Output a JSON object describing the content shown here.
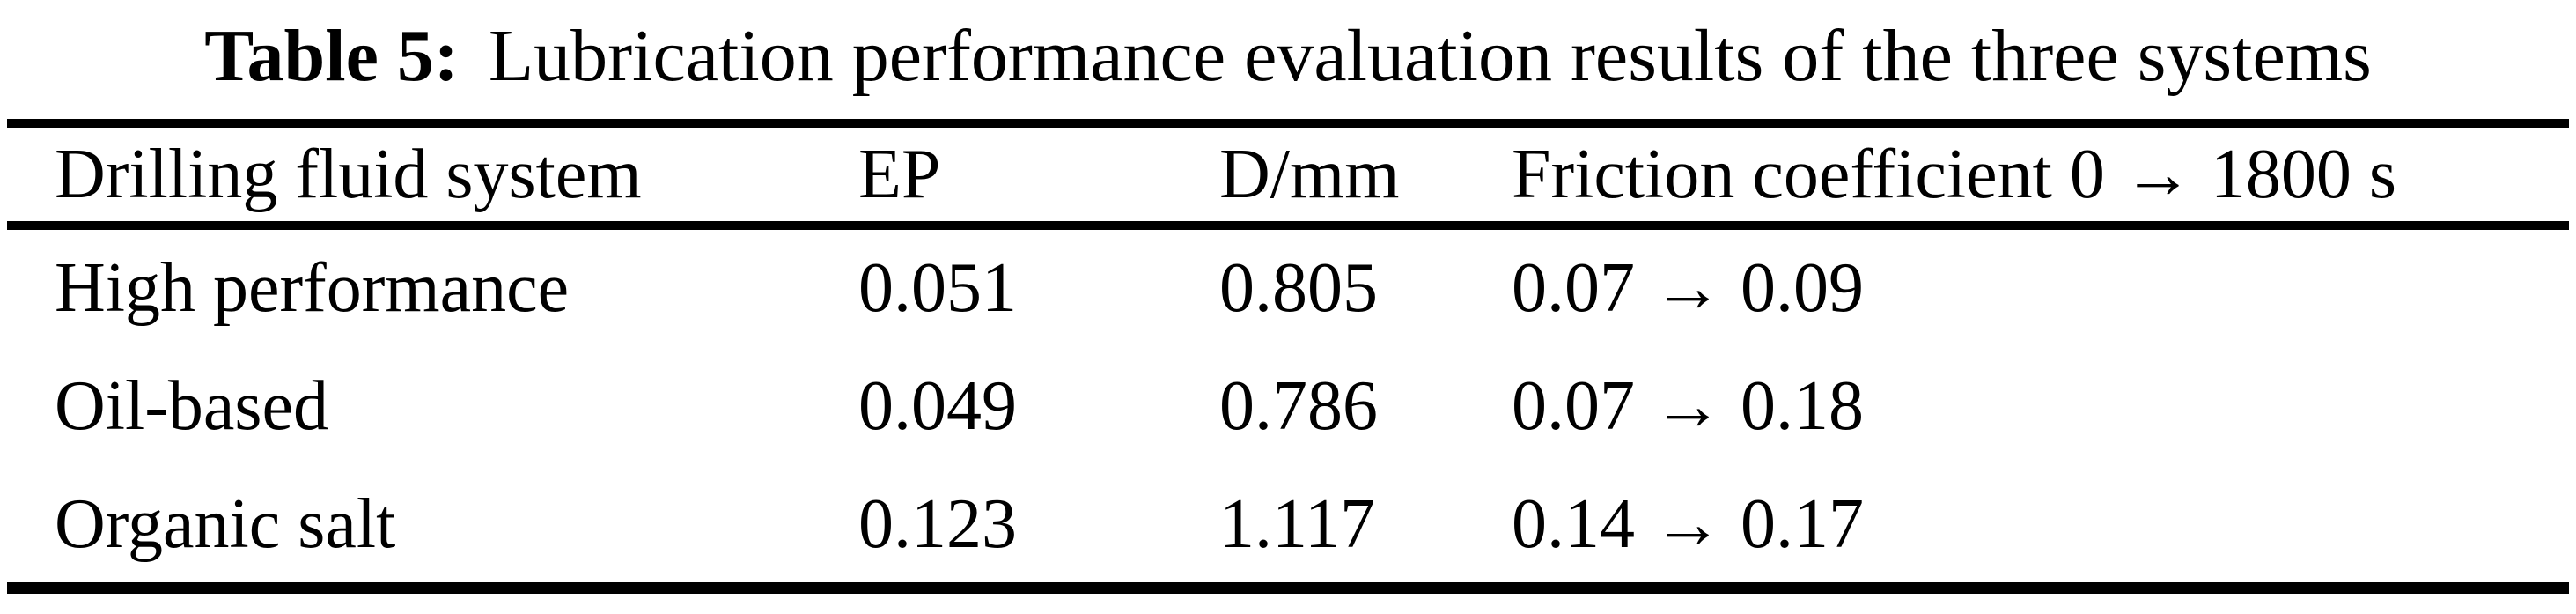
{
  "caption": {
    "label": "Table 5:",
    "text": "Lubrication performance evaluation results of the three systems"
  },
  "table": {
    "headers": {
      "system": "Drilling fluid system",
      "ep": "EP",
      "d_mm": "D/mm",
      "friction": "Friction coefficient 0 → 1800 s"
    },
    "rows": [
      {
        "system": "High performance",
        "ep": "0.051",
        "d_mm": "0.805",
        "friction": "0.07 → 0.09"
      },
      {
        "system": "Oil-based",
        "ep": "0.049",
        "d_mm": "0.786",
        "friction": "0.07 → 0.18"
      },
      {
        "system": "Organic salt",
        "ep": "0.123",
        "d_mm": "1.117",
        "friction": "0.14 → 0.17"
      }
    ]
  }
}
